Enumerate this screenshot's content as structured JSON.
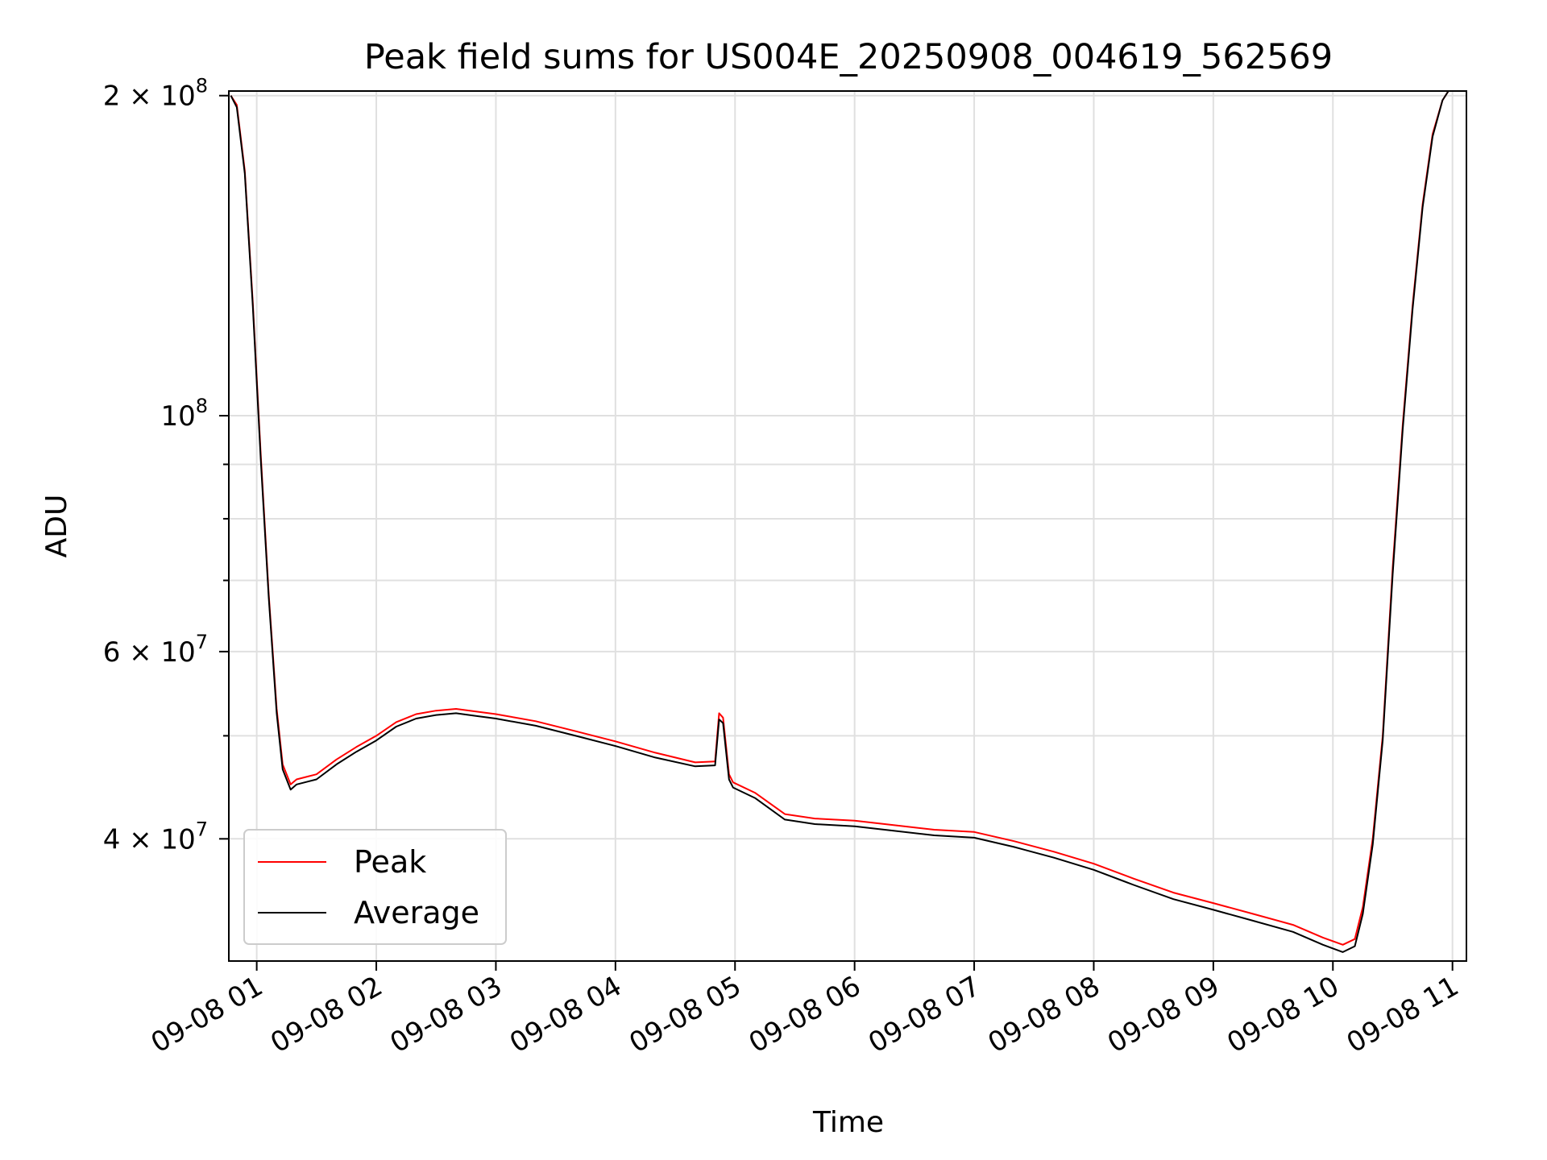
{
  "chart_data": {
    "type": "line",
    "title": "Peak field sums for US004E_20250908_004619_562569",
    "xlabel": "Time",
    "ylabel": "ADU",
    "yscale": "log",
    "grid": true,
    "legend_position": "lower-left",
    "xlim": [
      "09-08 00:46",
      "09-08 11:07"
    ],
    "ylim": [
      30700000,
      202000000
    ],
    "x_tick_labels": [
      "09-08 01",
      "09-08 02",
      "09-08 03",
      "09-08 04",
      "09-08 05",
      "09-08 06",
      "09-08 07",
      "09-08 08",
      "09-08 09",
      "09-08 10",
      "09-08 11"
    ],
    "y_tick_labels": [
      {
        "value": 40000000,
        "base": "4 × 10",
        "exp": "7"
      },
      {
        "value": 60000000,
        "base": "6 × 10",
        "exp": "7"
      },
      {
        "value": 100000000,
        "base": "10",
        "exp": "8"
      },
      {
        "value": 200000000,
        "base": "2 × 10",
        "exp": "8"
      }
    ],
    "series": [
      {
        "name": "Peak",
        "color": "#ff0000",
        "x": [
          "09-08 00:47",
          "09-08 00:50",
          "09-08 00:54",
          "09-08 00:58",
          "09-08 01:02",
          "09-08 01:06",
          "09-08 01:10",
          "09-08 01:13",
          "09-08 01:17",
          "09-08 01:20",
          "09-08 01:30",
          "09-08 01:40",
          "09-08 01:50",
          "09-08 02:00",
          "09-08 02:10",
          "09-08 02:20",
          "09-08 02:30",
          "09-08 02:40",
          "09-08 02:50",
          "09-08 03:00",
          "09-08 03:20",
          "09-08 03:40",
          "09-08 04:00",
          "09-08 04:20",
          "09-08 04:40",
          "09-08 04:50",
          "09-08 04:52",
          "09-08 04:54",
          "09-08 04:57",
          "09-08 04:59",
          "09-08 05:10",
          "09-08 05:25",
          "09-08 05:40",
          "09-08 06:00",
          "09-08 06:20",
          "09-08 06:40",
          "09-08 07:00",
          "09-08 07:20",
          "09-08 07:40",
          "09-08 08:00",
          "09-08 08:20",
          "09-08 08:40",
          "09-08 09:00",
          "09-08 09:20",
          "09-08 09:40",
          "09-08 09:55",
          "09-08 10:05",
          "09-08 10:11",
          "09-08 10:15",
          "09-08 10:20",
          "09-08 10:25",
          "09-08 10:30",
          "09-08 10:35",
          "09-08 10:40",
          "09-08 10:45",
          "09-08 10:50",
          "09-08 10:55",
          "09-08 10:58"
        ],
        "y": [
          200000000,
          196000000,
          170000000,
          128000000,
          92000000,
          68000000,
          53000000,
          47000000,
          45000000,
          45500000,
          46000000,
          47500000,
          48800000,
          50000000,
          51500000,
          52400000,
          52800000,
          53000000,
          52700000,
          52400000,
          51600000,
          50500000,
          49400000,
          48200000,
          47200000,
          47300000,
          52500000,
          52000000,
          46000000,
          45200000,
          44200000,
          42200000,
          41800000,
          41600000,
          41200000,
          40800000,
          40600000,
          39800000,
          38900000,
          37900000,
          36700000,
          35600000,
          34800000,
          34000000,
          33200000,
          32300000,
          31800000,
          32200000,
          34500000,
          40000000,
          50000000,
          72000000,
          98000000,
          127000000,
          158000000,
          184000000,
          198000000,
          202000000
        ]
      },
      {
        "name": "Average",
        "color": "#000000",
        "x": [
          "09-08 00:47",
          "09-08 00:50",
          "09-08 00:54",
          "09-08 00:58",
          "09-08 01:02",
          "09-08 01:06",
          "09-08 01:10",
          "09-08 01:13",
          "09-08 01:17",
          "09-08 01:20",
          "09-08 01:30",
          "09-08 01:40",
          "09-08 01:50",
          "09-08 02:00",
          "09-08 02:10",
          "09-08 02:20",
          "09-08 02:30",
          "09-08 02:40",
          "09-08 02:50",
          "09-08 03:00",
          "09-08 03:20",
          "09-08 03:40",
          "09-08 04:00",
          "09-08 04:20",
          "09-08 04:40",
          "09-08 04:50",
          "09-08 04:52",
          "09-08 04:54",
          "09-08 04:57",
          "09-08 04:59",
          "09-08 05:10",
          "09-08 05:25",
          "09-08 05:40",
          "09-08 06:00",
          "09-08 06:20",
          "09-08 06:40",
          "09-08 07:00",
          "09-08 07:20",
          "09-08 07:40",
          "09-08 08:00",
          "09-08 08:20",
          "09-08 08:40",
          "09-08 09:00",
          "09-08 09:20",
          "09-08 09:40",
          "09-08 09:55",
          "09-08 10:05",
          "09-08 10:11",
          "09-08 10:15",
          "09-08 10:20",
          "09-08 10:25",
          "09-08 10:30",
          "09-08 10:35",
          "09-08 10:40",
          "09-08 10:45",
          "09-08 10:50",
          "09-08 10:55",
          "09-08 10:58"
        ],
        "y": [
          200000000,
          195000000,
          169000000,
          127000000,
          91000000,
          67500000,
          52500000,
          46500000,
          44500000,
          45000000,
          45500000,
          47000000,
          48300000,
          49500000,
          51000000,
          51900000,
          52300000,
          52500000,
          52200000,
          51900000,
          51100000,
          50000000,
          48900000,
          47700000,
          46800000,
          46900000,
          51800000,
          51400000,
          45500000,
          44700000,
          43700000,
          41700000,
          41300000,
          41100000,
          40700000,
          40300000,
          40100000,
          39300000,
          38400000,
          37400000,
          36200000,
          35100000,
          34300000,
          33500000,
          32700000,
          31800000,
          31300000,
          31700000,
          34000000,
          39500000,
          49500000,
          71000000,
          97000000,
          126000000,
          157000000,
          183000000,
          198000000,
          202000000
        ]
      }
    ]
  }
}
